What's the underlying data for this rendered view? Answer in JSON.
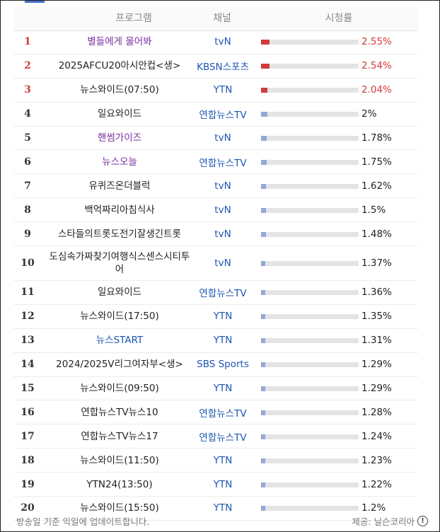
{
  "header": {
    "program": "프로그램",
    "channel": "채널",
    "rating": "시청률"
  },
  "rows": [
    {
      "rank": "1",
      "program": "별들에게 물어봐",
      "channel": "tvN",
      "rating": "2.55%",
      "value": 2.55,
      "style": "link",
      "top": true
    },
    {
      "rank": "2",
      "program": "2025AFCU20아시안컵<생>",
      "channel": "KBSN스포츠",
      "rating": "2.54%",
      "value": 2.54,
      "style": "",
      "top": true
    },
    {
      "rank": "3",
      "program": "뉴스와이드(07:50)",
      "channel": "YTN",
      "rating": "2.04%",
      "value": 2.04,
      "style": "",
      "top": true
    },
    {
      "rank": "4",
      "program": "일요와이드",
      "channel": "연합뉴스TV",
      "rating": "2%",
      "value": 2.0,
      "style": "",
      "top": false
    },
    {
      "rank": "5",
      "program": "핸썸가이즈",
      "channel": "tvN",
      "rating": "1.78%",
      "value": 1.78,
      "style": "link",
      "top": false
    },
    {
      "rank": "6",
      "program": "뉴스오늘",
      "channel": "연합뉴스TV",
      "rating": "1.75%",
      "value": 1.75,
      "style": "link",
      "top": false
    },
    {
      "rank": "7",
      "program": "유퀴즈온더블럭",
      "channel": "tvN",
      "rating": "1.62%",
      "value": 1.62,
      "style": "",
      "top": false
    },
    {
      "rank": "8",
      "program": "백억짜리아침식사",
      "channel": "tvN",
      "rating": "1.5%",
      "value": 1.5,
      "style": "",
      "top": false
    },
    {
      "rank": "9",
      "program": "스타들의트롯도전기잘생긴트롯",
      "channel": "tvN",
      "rating": "1.48%",
      "value": 1.48,
      "style": "",
      "top": false
    },
    {
      "rank": "10",
      "program": "도심속가짜찾기여행식스센스시티투어",
      "channel": "tvN",
      "rating": "1.37%",
      "value": 1.37,
      "style": "",
      "top": false,
      "tall": true
    },
    {
      "rank": "11",
      "program": "일요와이드",
      "channel": "연합뉴스TV",
      "rating": "1.36%",
      "value": 1.36,
      "style": "",
      "top": false
    },
    {
      "rank": "12",
      "program": "뉴스와이드(17:50)",
      "channel": "YTN",
      "rating": "1.35%",
      "value": 1.35,
      "style": "",
      "top": false
    },
    {
      "rank": "13",
      "program": "뉴스START",
      "channel": "YTN",
      "rating": "1.31%",
      "value": 1.31,
      "style": "blue",
      "top": false
    },
    {
      "rank": "14",
      "program": "2024/2025V리그여자부<생>",
      "channel": "SBS Sports",
      "rating": "1.29%",
      "value": 1.29,
      "style": "",
      "top": false
    },
    {
      "rank": "15",
      "program": "뉴스와이드(09:50)",
      "channel": "YTN",
      "rating": "1.29%",
      "value": 1.29,
      "style": "",
      "top": false
    },
    {
      "rank": "16",
      "program": "연합뉴스TV뉴스10",
      "channel": "연합뉴스TV",
      "rating": "1.28%",
      "value": 1.28,
      "style": "",
      "top": false
    },
    {
      "rank": "17",
      "program": "연합뉴스TV뉴스17",
      "channel": "연합뉴스TV",
      "rating": "1.24%",
      "value": 1.24,
      "style": "",
      "top": false
    },
    {
      "rank": "18",
      "program": "뉴스와이드(11:50)",
      "channel": "YTN",
      "rating": "1.23%",
      "value": 1.23,
      "style": "",
      "top": false
    },
    {
      "rank": "19",
      "program": "YTN24(13:50)",
      "channel": "YTN",
      "rating": "1.22%",
      "value": 1.22,
      "style": "",
      "top": false
    },
    {
      "rank": "20",
      "program": "뉴스와이드(15:50)",
      "channel": "YTN",
      "rating": "1.2%",
      "value": 1.2,
      "style": "",
      "top": false
    }
  ],
  "footer": {
    "note": "방송일 기준 익일에 업데이트합니다.",
    "source": "제공: 닐슨코리아",
    "info_glyph": "!"
  },
  "colors": {
    "top_red": "#d33a3a",
    "bar_blue": "#93a7d8",
    "link_purple": "#7a2fa3",
    "channel_blue": "#1d55b3"
  },
  "bar_scale_max_percent": 30
}
